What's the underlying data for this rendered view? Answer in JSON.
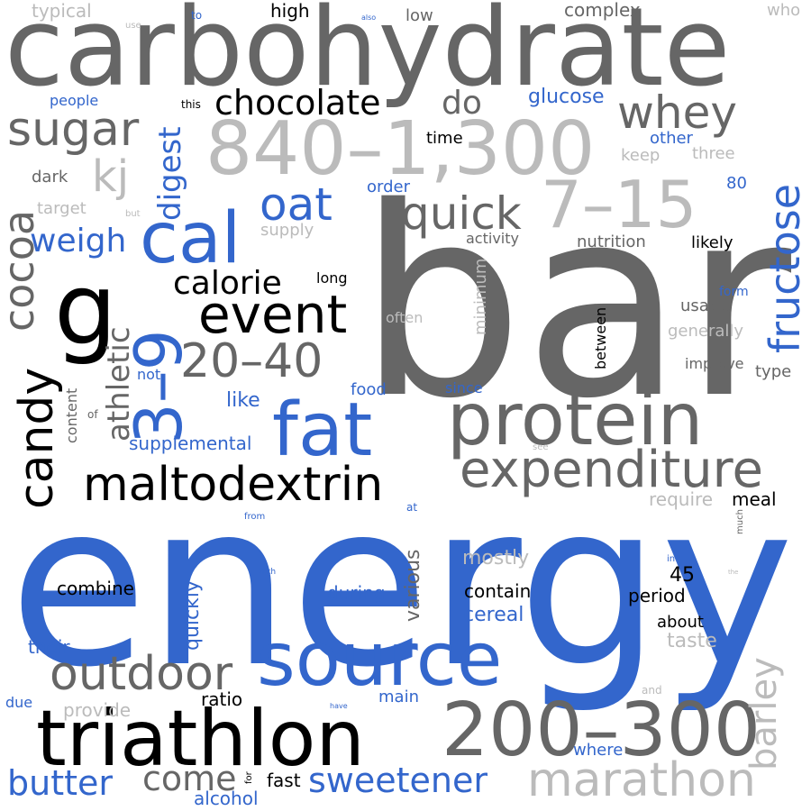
{
  "palette": {
    "blue": "#3366cc",
    "dark_gray": "#666666",
    "light_gray": "#bbbbbb",
    "black": "#000000",
    "background": "#ffffff"
  },
  "words": [
    {
      "text": "bar",
      "color": "dark_gray"
    },
    {
      "text": "energy",
      "color": "blue"
    },
    {
      "text": "carbohydrate",
      "color": "dark_gray"
    },
    {
      "text": "840–1,300",
      "color": "light_gray"
    },
    {
      "text": "protein",
      "color": "dark_gray"
    },
    {
      "text": "triathlon",
      "color": "black"
    },
    {
      "text": "200–300",
      "color": "dark_gray"
    },
    {
      "text": "source",
      "color": "blue"
    },
    {
      "text": "expenditure",
      "color": "dark_gray"
    },
    {
      "text": "7–15",
      "color": "light_gray"
    },
    {
      "text": "fat",
      "color": "blue"
    },
    {
      "text": "maltodextrin",
      "color": "black"
    },
    {
      "text": "g",
      "color": "black"
    },
    {
      "text": "cal",
      "color": "blue"
    },
    {
      "text": "event",
      "color": "black"
    },
    {
      "text": "3–9",
      "color": "blue"
    },
    {
      "text": "outdoor",
      "color": "dark_gray"
    },
    {
      "text": "marathon",
      "color": "light_gray"
    },
    {
      "text": "fructose",
      "color": "blue"
    },
    {
      "text": "20–40",
      "color": "dark_gray"
    },
    {
      "text": "candy",
      "color": "black"
    },
    {
      "text": "whey",
      "color": "dark_gray"
    },
    {
      "text": "sugar",
      "color": "dark_gray"
    },
    {
      "text": "quick",
      "color": "dark_gray"
    },
    {
      "text": "cocoa",
      "color": "dark_gray"
    },
    {
      "text": "chocolate",
      "color": "black"
    },
    {
      "text": "oat",
      "color": "blue"
    },
    {
      "text": "kj",
      "color": "light_gray"
    },
    {
      "text": "butter",
      "color": "blue"
    },
    {
      "text": "sweetener",
      "color": "blue"
    },
    {
      "text": "barley",
      "color": "light_gray"
    },
    {
      "text": "come",
      "color": "dark_gray"
    },
    {
      "text": "athletic",
      "color": "dark_gray"
    },
    {
      "text": "calorie",
      "color": "black"
    },
    {
      "text": "digest",
      "color": "blue"
    },
    {
      "text": "weigh",
      "color": "blue"
    },
    {
      "text": "do",
      "color": "dark_gray"
    },
    {
      "text": "supplemental",
      "color": "blue"
    },
    {
      "text": "like",
      "color": "blue"
    },
    {
      "text": "glucose",
      "color": "blue"
    },
    {
      "text": "cereal",
      "color": "blue"
    },
    {
      "text": "contain",
      "color": "black"
    },
    {
      "text": "combine",
      "color": "black"
    },
    {
      "text": "period",
      "color": "black"
    },
    {
      "text": "various",
      "color": "dark_gray"
    },
    {
      "text": "quickly",
      "color": "blue"
    },
    {
      "text": "mostly",
      "color": "light_gray"
    },
    {
      "text": "during",
      "color": "blue"
    },
    {
      "text": "45",
      "color": "black"
    },
    {
      "text": "about",
      "color": "black"
    },
    {
      "text": "taste",
      "color": "light_gray"
    },
    {
      "text": "ratio",
      "color": "black"
    },
    {
      "text": "main",
      "color": "blue"
    },
    {
      "text": "provide",
      "color": "light_gray"
    },
    {
      "text": "their",
      "color": "blue"
    },
    {
      "text": "alcohol",
      "color": "blue"
    },
    {
      "text": "fast",
      "color": "black"
    },
    {
      "text": "where",
      "color": "blue"
    },
    {
      "text": "require",
      "color": "light_gray"
    },
    {
      "text": "meal",
      "color": "black"
    },
    {
      "text": "high",
      "color": "black"
    },
    {
      "text": "low",
      "color": "dark_gray"
    },
    {
      "text": "complex",
      "color": "dark_gray"
    },
    {
      "text": "typical",
      "color": "light_gray"
    },
    {
      "text": "who",
      "color": "light_gray"
    },
    {
      "text": "time",
      "color": "black"
    },
    {
      "text": "other",
      "color": "blue"
    },
    {
      "text": "three",
      "color": "light_gray"
    },
    {
      "text": "keep",
      "color": "light_gray"
    },
    {
      "text": "80",
      "color": "blue"
    },
    {
      "text": "order",
      "color": "blue"
    },
    {
      "text": "people",
      "color": "blue"
    },
    {
      "text": "dark",
      "color": "dark_gray"
    },
    {
      "text": "target",
      "color": "light_gray"
    },
    {
      "text": "supply",
      "color": "light_gray"
    },
    {
      "text": "activity",
      "color": "dark_gray"
    },
    {
      "text": "nutrition",
      "color": "dark_gray"
    },
    {
      "text": "likely",
      "color": "black"
    },
    {
      "text": "long",
      "color": "black"
    },
    {
      "text": "minimum",
      "color": "light_gray"
    },
    {
      "text": "often",
      "color": "light_gray"
    },
    {
      "text": "between",
      "color": "black"
    },
    {
      "text": "form",
      "color": "blue"
    },
    {
      "text": "usage",
      "color": "dark_gray"
    },
    {
      "text": "generally",
      "color": "light_gray"
    },
    {
      "text": "improve",
      "color": "dark_gray"
    },
    {
      "text": "type",
      "color": "dark_gray"
    },
    {
      "text": "not",
      "color": "blue"
    },
    {
      "text": "food",
      "color": "blue"
    },
    {
      "text": "since",
      "color": "blue"
    },
    {
      "text": "content",
      "color": "dark_gray"
    },
    {
      "text": "of",
      "color": "dark_gray"
    },
    {
      "text": "to",
      "color": "blue"
    },
    {
      "text": "use",
      "color": "light_gray"
    },
    {
      "text": "also",
      "color": "blue"
    },
    {
      "text": "this",
      "color": "black"
    },
    {
      "text": "but",
      "color": "light_gray"
    },
    {
      "text": "see",
      "color": "light_gray"
    },
    {
      "text": "from",
      "color": "blue"
    },
    {
      "text": "at",
      "color": "blue"
    },
    {
      "text": "much",
      "color": "dark_gray"
    },
    {
      "text": "with",
      "color": "blue"
    },
    {
      "text": "in",
      "color": "blue"
    },
    {
      "text": "the",
      "color": "light_gray"
    },
    {
      "text": "have",
      "color": "blue"
    },
    {
      "text": "and",
      "color": "light_gray"
    },
    {
      "text": "due",
      "color": "blue"
    },
    {
      "text": "for",
      "color": "black"
    }
  ]
}
